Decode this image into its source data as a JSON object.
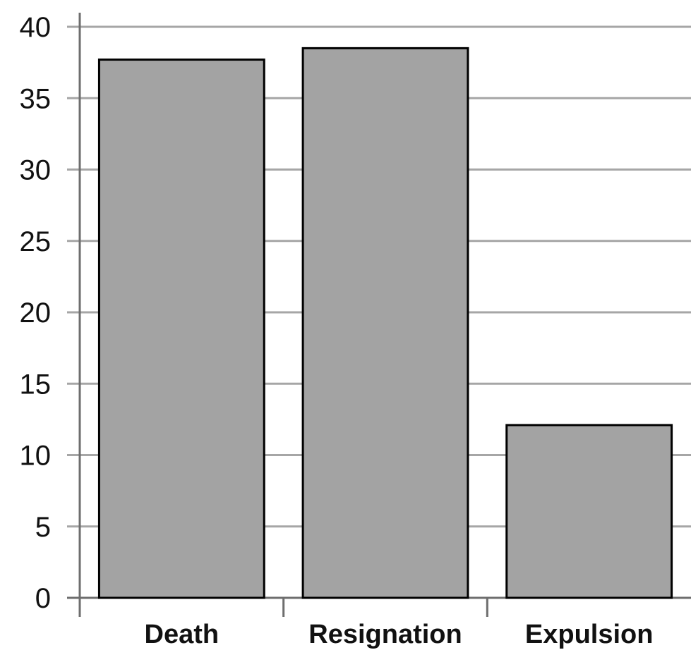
{
  "chart_data": {
    "type": "bar",
    "categories": [
      "Death",
      "Resignation",
      "Expulsion"
    ],
    "values": [
      37.7,
      38.5,
      12.1
    ],
    "ylim": [
      0,
      40
    ],
    "y_ticks": [
      "0",
      "5",
      "10",
      "15",
      "20",
      "25",
      "30",
      "35",
      "40"
    ],
    "title": "",
    "xlabel": "",
    "ylabel": "",
    "grid": true,
    "legend": "none",
    "colors": {
      "bar_fill": "#a3a3a3",
      "bar_stroke": "#000000",
      "grid": "#a6a6a6",
      "axis": "#6e6e6e",
      "text": "#111111"
    }
  }
}
